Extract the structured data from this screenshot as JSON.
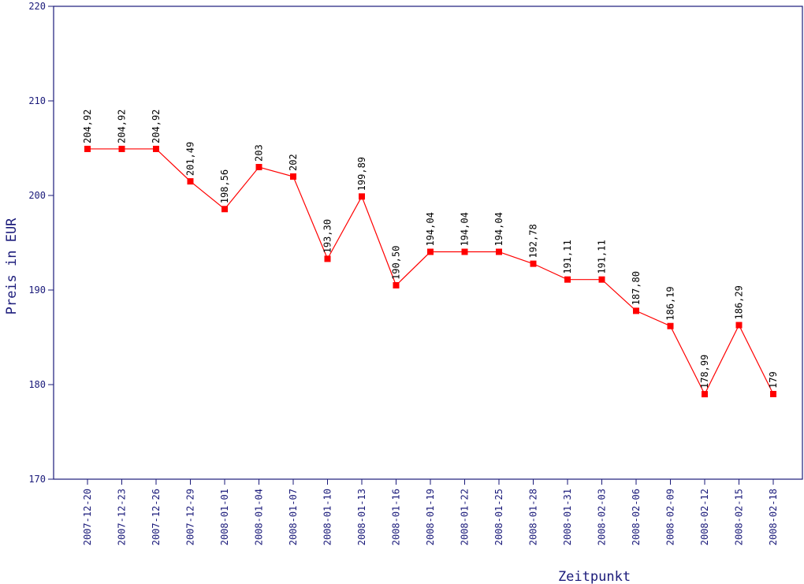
{
  "chart_data": {
    "type": "line",
    "title": "",
    "xlabel": "Zeitpunkt",
    "ylabel": "Preis in EUR",
    "ylim": [
      170,
      220
    ],
    "yticks": [
      170,
      180,
      190,
      200,
      210,
      220
    ],
    "grid": false,
    "categories": [
      "2007-12-20",
      "2007-12-23",
      "2007-12-26",
      "2007-12-29",
      "2008-01-01",
      "2008-01-04",
      "2008-01-07",
      "2008-01-10",
      "2008-01-13",
      "2008-01-16",
      "2008-01-19",
      "2008-01-22",
      "2008-01-25",
      "2008-01-28",
      "2008-01-31",
      "2008-02-03",
      "2008-02-06",
      "2008-02-09",
      "2008-02-12",
      "2008-02-15",
      "2008-02-18"
    ],
    "values": [
      204.92,
      204.92,
      204.92,
      201.49,
      198.56,
      203,
      202,
      193.3,
      199.89,
      190.5,
      194.04,
      194.04,
      194.04,
      192.78,
      191.11,
      191.11,
      187.8,
      186.19,
      178.99,
      186.29,
      179
    ],
    "data_labels": [
      "204,92",
      "204,92",
      "204,92",
      "201,49",
      "198,56",
      "203",
      "202",
      "193,30",
      "199,89",
      "190,50",
      "194,04",
      "194,04",
      "194,04",
      "192,78",
      "191,11",
      "191,11",
      "187,80",
      "186,19",
      "178,99",
      "186,29",
      "179"
    ],
    "colors": {
      "axis": "#1a1a7a",
      "series": "#ff0000",
      "data_label": "#000000"
    }
  }
}
